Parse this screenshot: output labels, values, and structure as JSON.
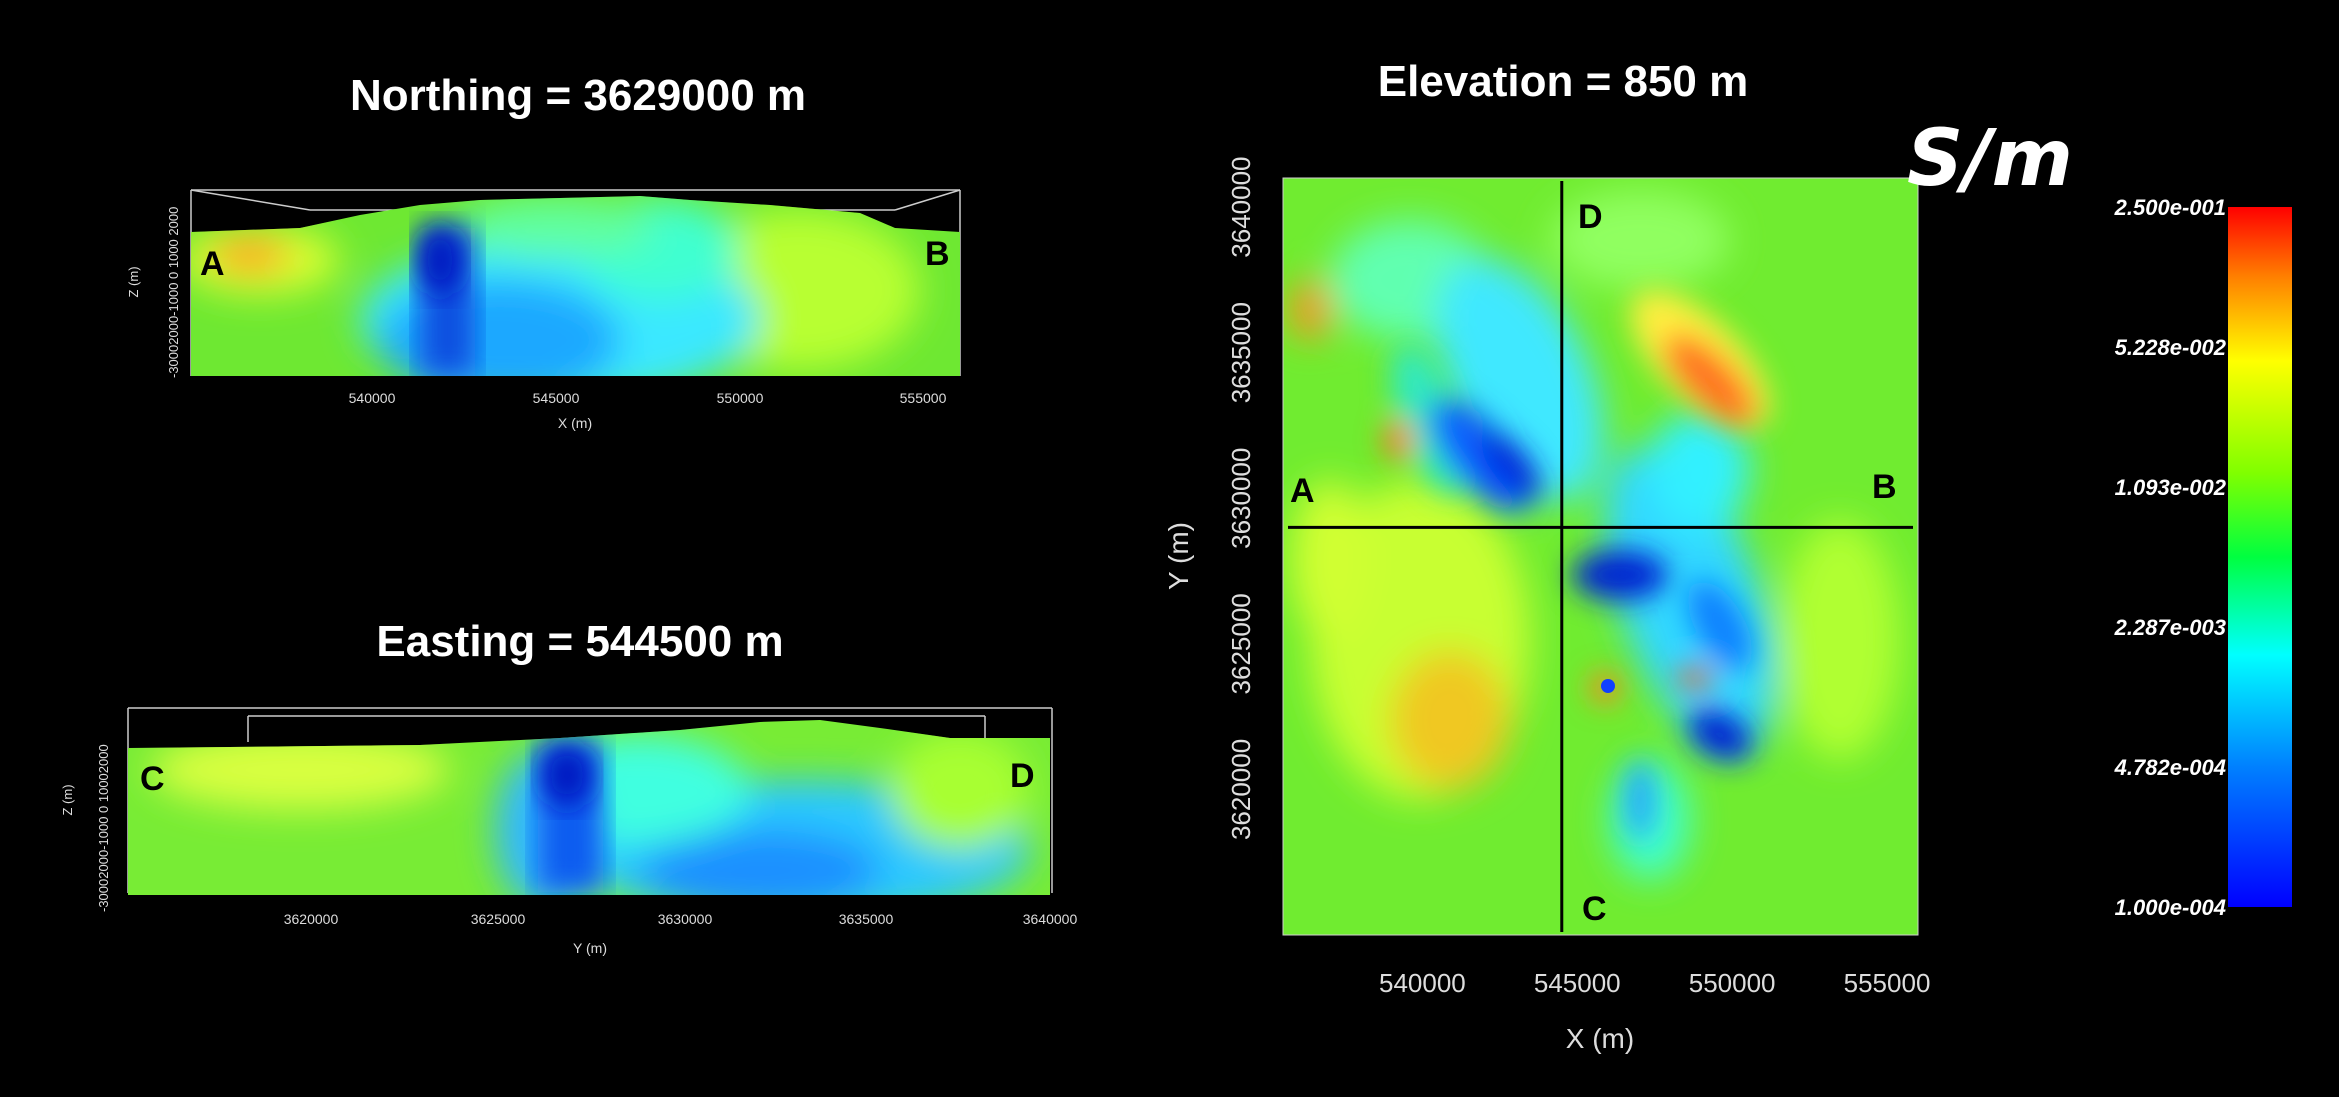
{
  "chart_data": [
    {
      "type": "heatmap",
      "id": "section-northing",
      "title": "Northing = 3629000 m",
      "xlabel": "X (m)",
      "ylabel": "Z (m)",
      "xlim": [
        535000,
        556000
      ],
      "ylim": [
        -3000,
        2000
      ],
      "xticks": [
        "540000",
        "545000",
        "550000",
        "555000"
      ],
      "yticks": [
        "-3000",
        "-2000",
        "-1000",
        "0",
        "1000",
        "2000"
      ],
      "ytick_text": "-30002000-1000   0  1000 2000",
      "profile_labels": {
        "left": "A",
        "right": "B"
      },
      "anomalies": [
        {
          "x": 541800,
          "z": -200,
          "level": "low",
          "description": "conductivity low"
        },
        {
          "x": 545500,
          "z": -800,
          "level": "low"
        },
        {
          "x": 537500,
          "z": 300,
          "level": "high"
        }
      ]
    },
    {
      "type": "heatmap",
      "id": "section-easting",
      "title": "Easting = 544500 m",
      "xlabel": "Y (m)",
      "ylabel": "Z (m)",
      "xlim": [
        3615000,
        3640000
      ],
      "ylim": [
        -3000,
        2000
      ],
      "xticks": [
        "3620000",
        "3625000",
        "3630000",
        "3635000",
        "3640000"
      ],
      "ytick_text": "-30002000-1000   0  10002000",
      "profile_labels": {
        "left": "C",
        "right": "D"
      }
    },
    {
      "type": "heatmap",
      "id": "plan-elevation",
      "title": "Elevation = 850 m",
      "xlabel": "X (m)",
      "ylabel": "Y (m)",
      "xlim": [
        535500,
        556000
      ],
      "ylim": [
        3615000,
        3641000
      ],
      "xticks": [
        {
          "label": "540000",
          "value": 540000
        },
        {
          "label": "545000",
          "value": 545000
        },
        {
          "label": "550000",
          "value": 550000
        },
        {
          "label": "555000",
          "value": 555000
        }
      ],
      "yticks": [
        {
          "label": "3620000",
          "value": 3620000
        },
        {
          "label": "3625000",
          "value": 3625000
        },
        {
          "label": "3630000",
          "value": 3630000
        },
        {
          "label": "3635000",
          "value": 3635000
        },
        {
          "label": "3640000",
          "value": 3640000
        }
      ],
      "profile_lines": [
        {
          "name": "A-B",
          "from": "A",
          "to": "B",
          "y": 3629000
        },
        {
          "name": "C-D",
          "from": "C",
          "to": "D",
          "x": 544500
        }
      ]
    }
  ],
  "colorbar": {
    "unit": "S/m",
    "scale": "log",
    "ticks": [
      "2.500e-001",
      "5.228e-002",
      "1.093e-002",
      "2.287e-003",
      "4.782e-004",
      "1.000e-004"
    ],
    "colors": [
      "#ff0000",
      "#ff8000",
      "#ffff00",
      "#80ff00",
      "#00ff00",
      "#00ffff",
      "#0080ff",
      "#0000ff"
    ]
  }
}
